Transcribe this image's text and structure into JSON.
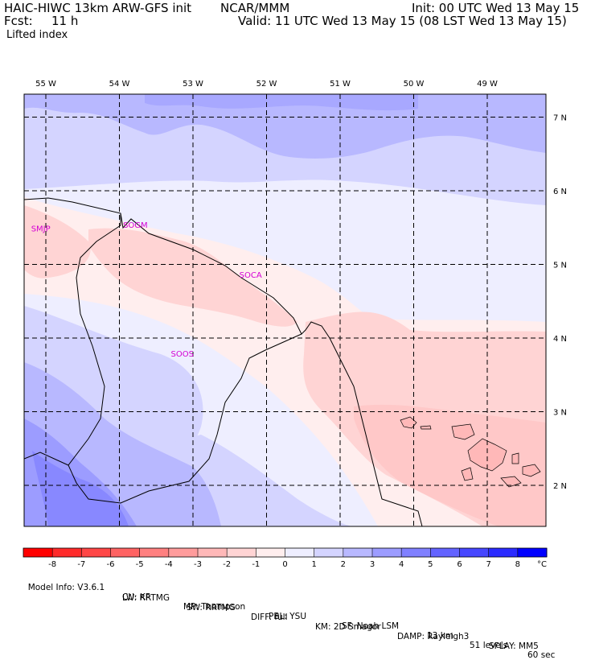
{
  "header": {
    "model": "HAIC-HIWC 13km ARW-GFS init",
    "org": "NCAR/MMM",
    "init": "Init: 00 UTC Wed 13 May 15",
    "fcst_label": "Fcst:",
    "fcst_value": "11 h",
    "valid": "Valid: 11 UTC Wed 13 May 15 (08 LST Wed 13 May 15)",
    "field": "Lifted index"
  },
  "map": {
    "lon_labels": [
      "55 W",
      "54 W",
      "53 W",
      "52 W",
      "51 W",
      "50 W",
      "49 W"
    ],
    "lon_values": [
      -55,
      -54,
      -53,
      -52,
      -51,
      -50,
      -49
    ],
    "lat_labels": [
      "7 N",
      "6 N",
      "5 N",
      "4 N",
      "3 N",
      "2 N"
    ],
    "lat_values": [
      7,
      6,
      5,
      4,
      3,
      2
    ],
    "stations": [
      {
        "id": "SMJP",
        "lon": -55.2,
        "lat": 5.45
      },
      {
        "id": "SOGM",
        "lon": -53.95,
        "lat": 5.5
      },
      {
        "id": "SOCA",
        "lon": -52.37,
        "lat": 4.82
      },
      {
        "id": "SOOS",
        "lon": -53.3,
        "lat": 3.75
      }
    ],
    "station_color": "#d400d4"
  },
  "colorbar": {
    "ticks": [
      "-8",
      "-7",
      "-6",
      "-5",
      "-4",
      "-3",
      "-2",
      "-1",
      "0",
      "1",
      "2",
      "3",
      "4",
      "5",
      "6",
      "7",
      "8"
    ],
    "unit": "°C",
    "colors": [
      "#ff0000",
      "#ff2b2b",
      "#ff4747",
      "#ff6363",
      "#ff8080",
      "#ff9c9c",
      "#ffb8b8",
      "#ffd4d4",
      "#ffeeee",
      "#eeeeff",
      "#d4d4ff",
      "#b8b8ff",
      "#9c9cff",
      "#8080ff",
      "#6363ff",
      "#4747ff",
      "#2b2bff",
      "#0000ff"
    ]
  },
  "footer": {
    "line1": [
      "Model Info: V3.6.1",
      "CU: KF",
      "MP: Thompson",
      "PBL: YSU",
      "SF: Noah LSM",
      "13 km",
      "51 levels",
      "60 sec"
    ],
    "line2": [
      "LW: RRTMG",
      "SW: RRTMG",
      "DIFF: full",
      "KM: 2D Smagor",
      "DAMP: Rayleigh3",
      "SFLAY: MM5"
    ]
  }
}
